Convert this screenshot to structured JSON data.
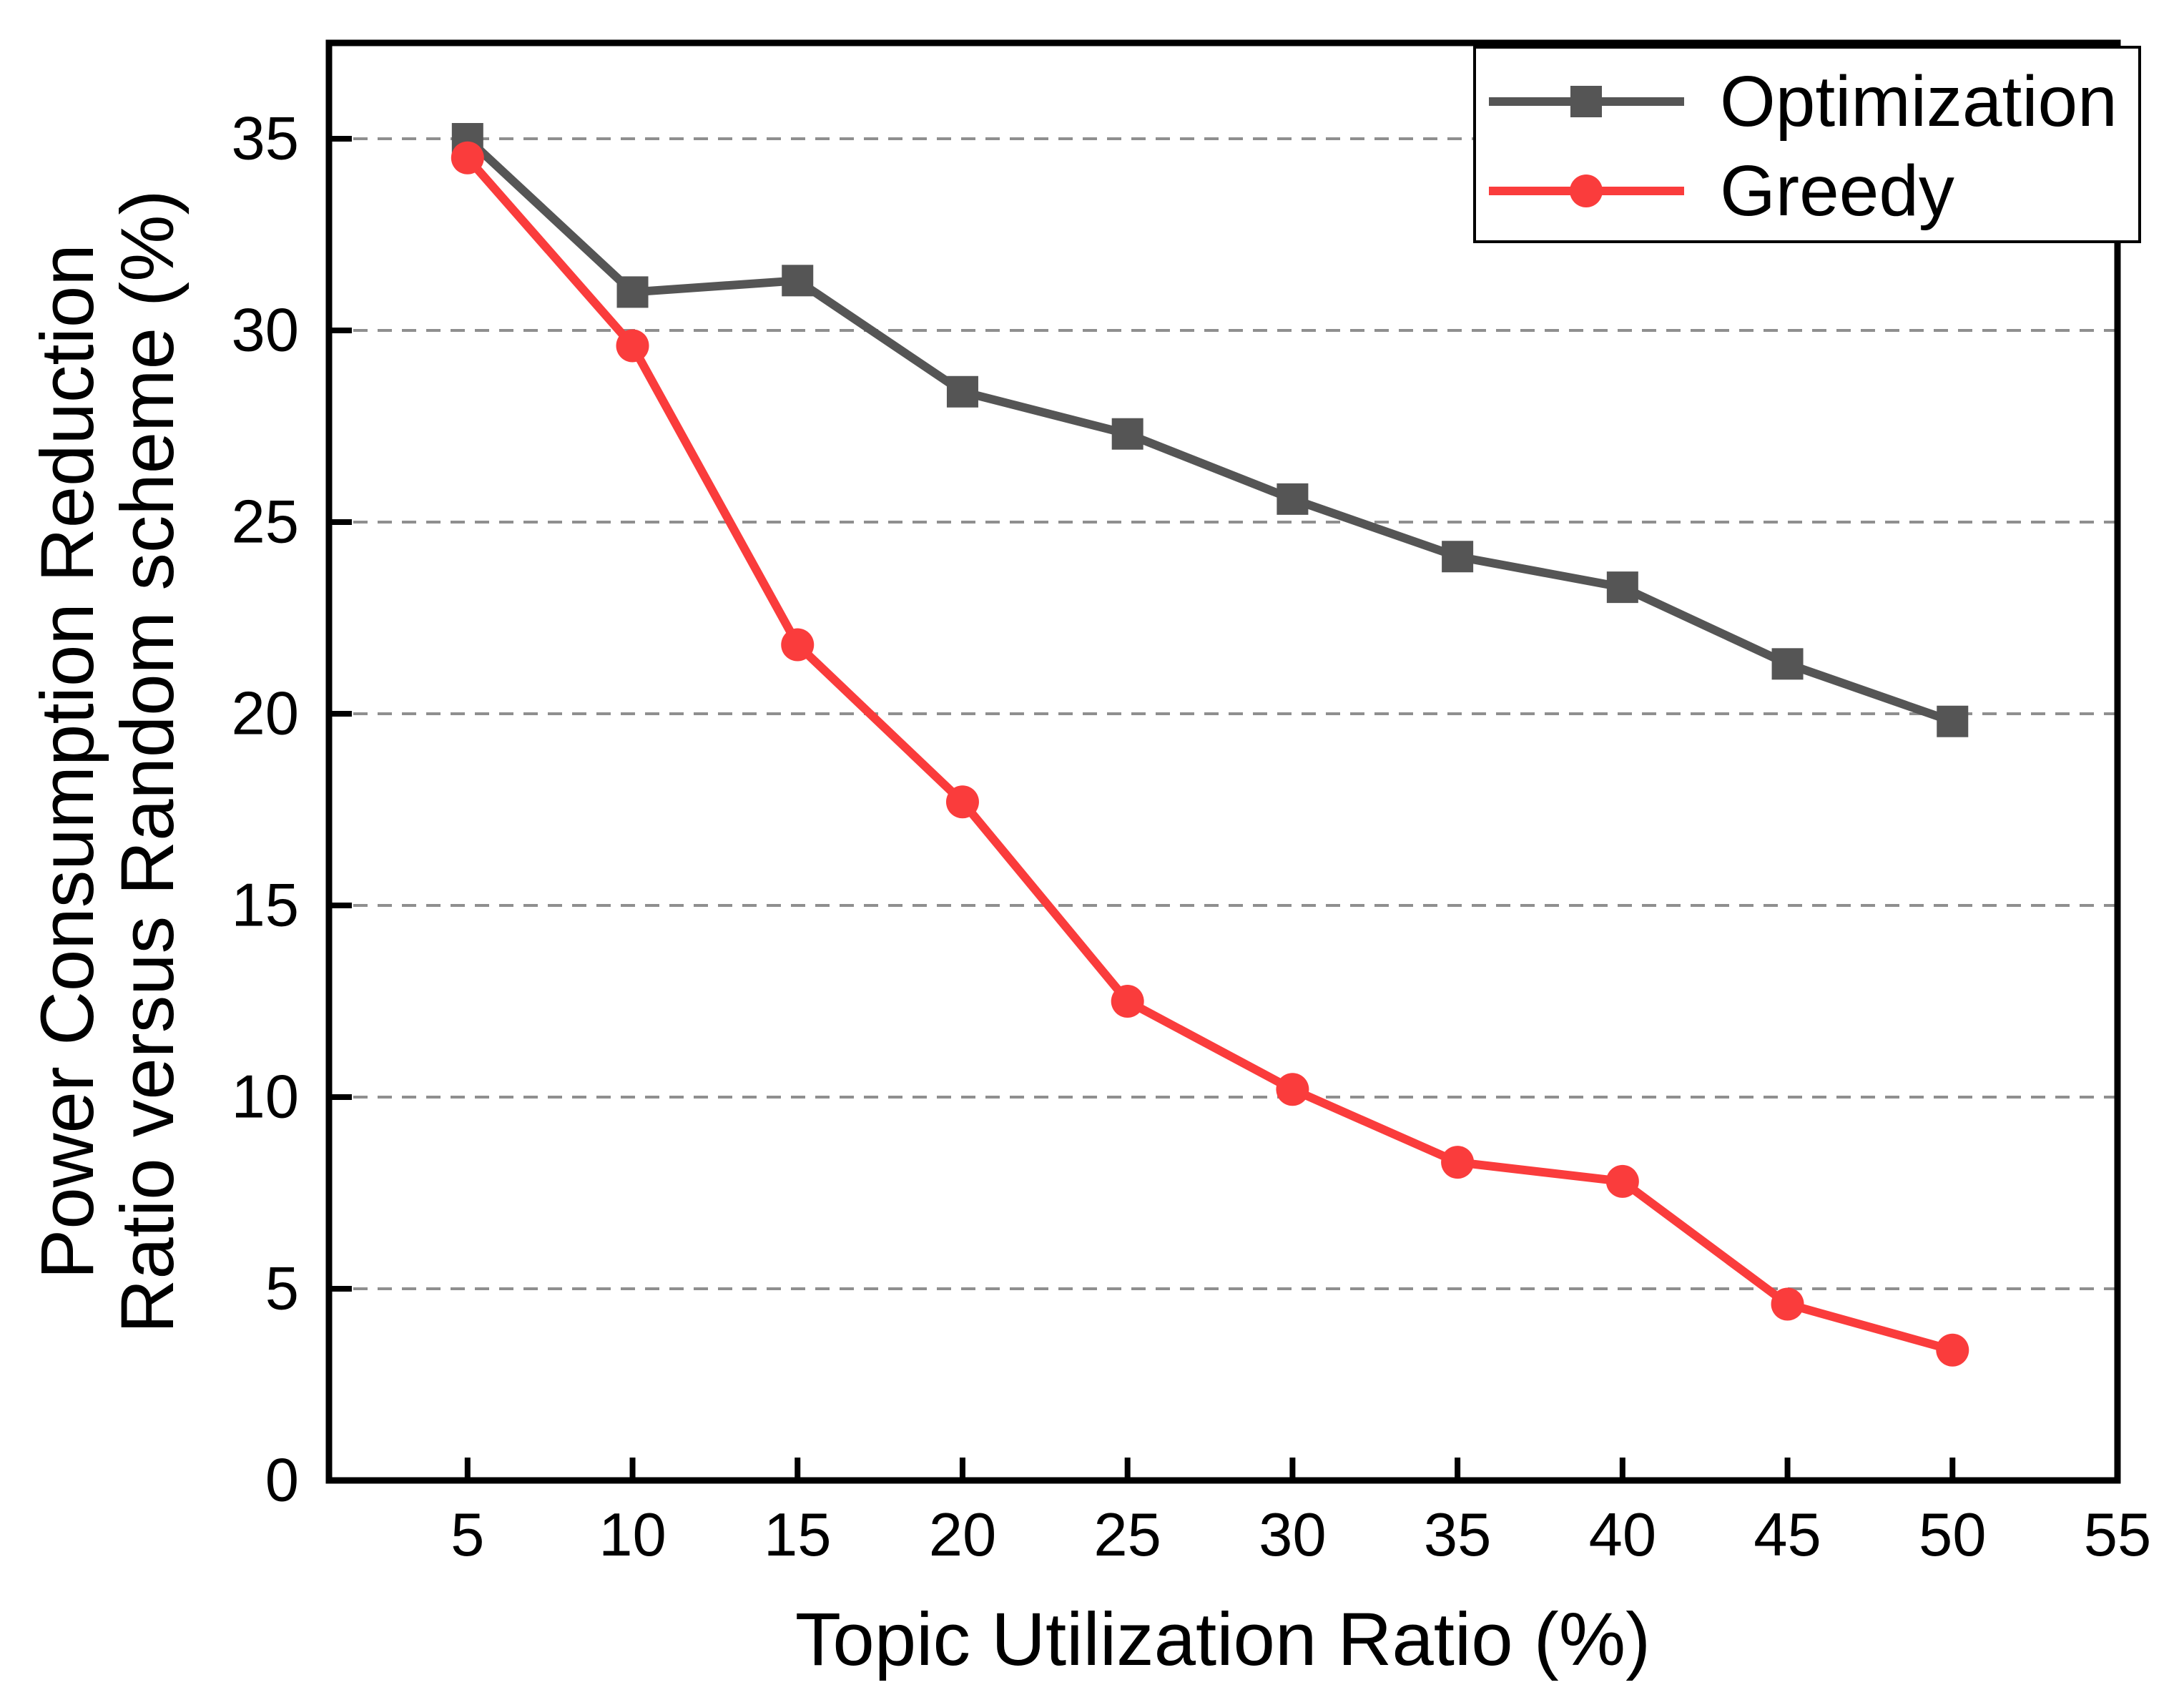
{
  "chart_data": {
    "type": "line",
    "title": "",
    "xlabel": "Topic Utilization Ratio (%)",
    "ylabel_line1": "Power Consumption Reduction",
    "ylabel_line2": "Ratio versus Random scheme (%)",
    "x": [
      5,
      10,
      15,
      20,
      25,
      30,
      35,
      40,
      45,
      50
    ],
    "series": [
      {
        "name": "Optimization",
        "color": "#555555",
        "marker": "square",
        "values": [
          35.0,
          31.0,
          31.3,
          28.4,
          27.3,
          25.6,
          24.1,
          23.3,
          21.3,
          19.8
        ]
      },
      {
        "name": "Greedy",
        "color": "#fa3c3c",
        "marker": "circle",
        "values": [
          34.5,
          29.6,
          21.8,
          17.7,
          12.5,
          10.2,
          8.3,
          7.8,
          4.6,
          3.4
        ]
      }
    ],
    "x_ticks": [
      5,
      10,
      15,
      20,
      25,
      30,
      35,
      40,
      45,
      50,
      55
    ],
    "y_ticks": [
      0,
      5,
      10,
      15,
      20,
      25,
      30,
      35
    ],
    "xlim": [
      0.8,
      55
    ],
    "ylim": [
      0,
      37.5
    ],
    "grid": {
      "horizontal_gridlines_at": [
        5,
        10,
        15,
        20,
        25,
        30,
        35
      ],
      "style": "dashed",
      "color": "#8f8f8f"
    },
    "legend": {
      "position": "top-right",
      "entries": [
        "Optimization",
        "Greedy"
      ]
    }
  },
  "colors": {
    "background": "#ffffff",
    "axis": "#000000",
    "grid": "#8f8f8f",
    "optimization": "#555555",
    "greedy": "#fa3c3c"
  }
}
